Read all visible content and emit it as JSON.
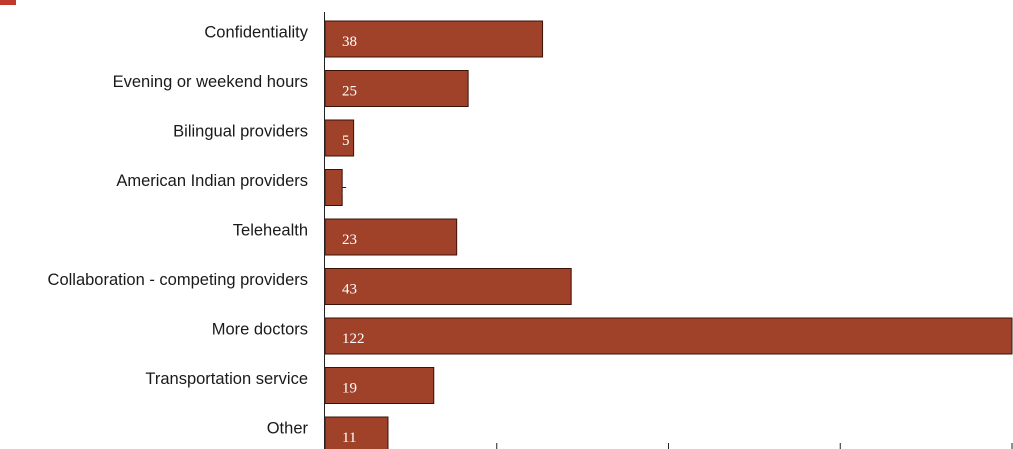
{
  "chart_data": {
    "type": "bar",
    "orientation": "horizontal",
    "categories": [
      "Confidentiality",
      "Evening or weekend hours",
      "Bilingual providers",
      "American Indian providers",
      "Telehealth",
      "Collaboration - competing providers",
      "More doctors",
      "Transportation service",
      "Other"
    ],
    "values": [
      38,
      25,
      5,
      3,
      23,
      43,
      122,
      19,
      11
    ],
    "xlim": [
      0,
      120
    ],
    "grid": false,
    "bar_color": "#a0412a",
    "bar_edge_color": "#3a1208",
    "partial_title_color": "#c0392b"
  }
}
